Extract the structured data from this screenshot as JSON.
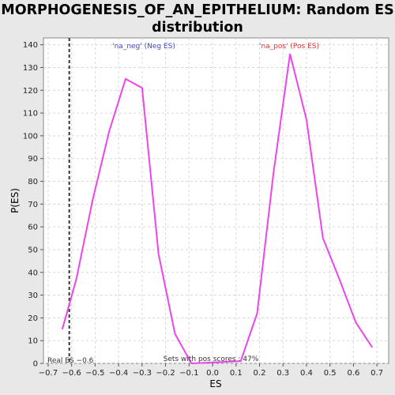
{
  "chart_data": {
    "type": "line",
    "title_line1": "MORPHOGENESIS_OF_AN_EPITHELIUM: Random ES",
    "title_line2": "distribution",
    "xlabel": "ES",
    "ylabel": "P(ES)",
    "xlim": [
      -0.72,
      0.75
    ],
    "ylim": [
      0,
      143
    ],
    "xticks": [
      -0.7,
      -0.6,
      -0.5,
      -0.4,
      -0.3,
      -0.2,
      -0.1,
      0.0,
      0.1,
      0.2,
      0.3,
      0.4,
      0.5,
      0.6,
      0.7
    ],
    "xtick_labels": [
      "−0.7",
      "−0.6",
      "−0.5",
      "−0.4",
      "−0.3",
      "−0.2",
      "−0.1",
      "0.0",
      "0.1",
      "0.2",
      "0.3",
      "0.4",
      "0.5",
      "0.6",
      "0.7"
    ],
    "yticks": [
      0,
      10,
      20,
      30,
      40,
      50,
      60,
      70,
      80,
      90,
      100,
      110,
      120,
      130,
      140
    ],
    "grid": true,
    "line_color": "#ee44ee",
    "series": [
      {
        "x": [
          -0.64,
          -0.58,
          -0.51,
          -0.44,
          -0.37,
          -0.3,
          -0.23,
          -0.16,
          -0.09,
          0.12,
          0.19,
          0.26,
          0.33,
          0.4,
          0.47,
          0.54,
          0.61,
          0.68
        ],
        "y": [
          15,
          37,
          72,
          102,
          125,
          121,
          48,
          13,
          0,
          1,
          22,
          84,
          136,
          107,
          55,
          37,
          18,
          7
        ]
      }
    ],
    "real_es": -0.61,
    "annotations": {
      "neg_label": "'na_neg' (Neg ES)",
      "neg_color": "#4444cc",
      "pos_label": "'na_pos' (Pos ES)",
      "pos_color": "#dd3333",
      "real_es_label": "Real ES −0.6",
      "pos_scores_label": "Sets with pos scores : 47%"
    }
  }
}
